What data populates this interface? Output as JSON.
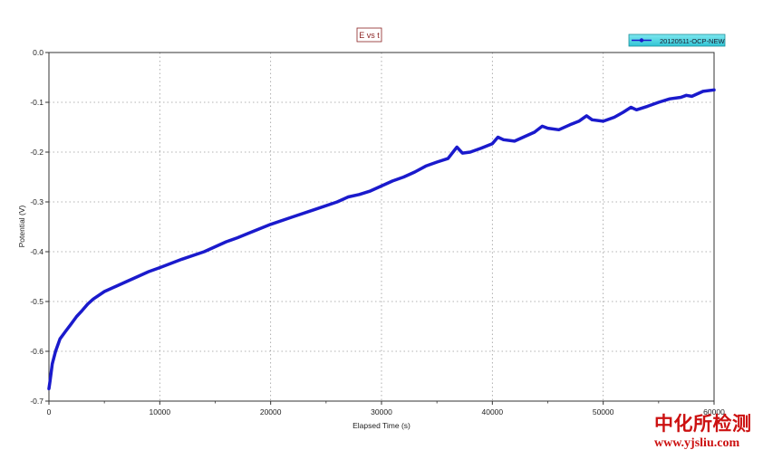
{
  "chart_data": {
    "type": "line",
    "title": "E vs t",
    "xlabel": "Elapsed Time (s)",
    "ylabel": "Potential (V)",
    "xlim": [
      0,
      60000
    ],
    "ylim": [
      -0.7,
      0.0
    ],
    "x_ticks": [
      0,
      10000,
      20000,
      30000,
      40000,
      50000,
      60000
    ],
    "x_tick_labels": [
      "0",
      "10000",
      "20000",
      "30000",
      "40000",
      "50000",
      "60000"
    ],
    "y_ticks": [
      0.0,
      -0.1,
      -0.2,
      -0.3,
      -0.4,
      -0.5,
      -0.6,
      -0.7
    ],
    "y_tick_labels": [
      "0.0",
      "-0.1",
      "-0.2",
      "-0.3",
      "-0.4",
      "-0.5",
      "-0.6",
      "-0.7"
    ],
    "grid": true,
    "legend_position": "top-right",
    "series": [
      {
        "name": "20120511-OCP-NEW",
        "color": "#1a1acc",
        "x": [
          0,
          100,
          300,
          600,
          1000,
          1500,
          2000,
          2500,
          3000,
          3500,
          4000,
          5000,
          6000,
          7000,
          8000,
          9000,
          10000,
          12000,
          14000,
          15000,
          16000,
          17000,
          18000,
          20000,
          22000,
          24000,
          26000,
          27000,
          28000,
          29000,
          30000,
          31000,
          32000,
          33000,
          34000,
          35000,
          36000,
          36800,
          37300,
          38000,
          39000,
          40000,
          40500,
          41000,
          42000,
          43000,
          43800,
          44500,
          45000,
          46000,
          47000,
          47800,
          48500,
          49000,
          50000,
          51000,
          51800,
          52500,
          53000,
          54000,
          55000,
          56000,
          57000,
          57500,
          58000,
          59000,
          60000
        ],
        "values": [
          -0.675,
          -0.66,
          -0.625,
          -0.6,
          -0.575,
          -0.56,
          -0.545,
          -0.53,
          -0.518,
          -0.505,
          -0.495,
          -0.48,
          -0.47,
          -0.46,
          -0.45,
          -0.44,
          -0.432,
          -0.415,
          -0.4,
          -0.39,
          -0.38,
          -0.372,
          -0.363,
          -0.345,
          -0.33,
          -0.315,
          -0.3,
          -0.29,
          -0.285,
          -0.278,
          -0.268,
          -0.258,
          -0.25,
          -0.24,
          -0.228,
          -0.22,
          -0.213,
          -0.19,
          -0.202,
          -0.2,
          -0.192,
          -0.183,
          -0.17,
          -0.175,
          -0.178,
          -0.168,
          -0.16,
          -0.148,
          -0.152,
          -0.155,
          -0.145,
          -0.138,
          -0.127,
          -0.135,
          -0.138,
          -0.13,
          -0.12,
          -0.11,
          -0.115,
          -0.108,
          -0.1,
          -0.093,
          -0.09,
          -0.086,
          -0.088,
          -0.078,
          -0.075
        ]
      }
    ]
  },
  "watermark": {
    "brand_cn": "中化所检测",
    "url": "www.yjsliu.com",
    "color": "#cc1111"
  }
}
